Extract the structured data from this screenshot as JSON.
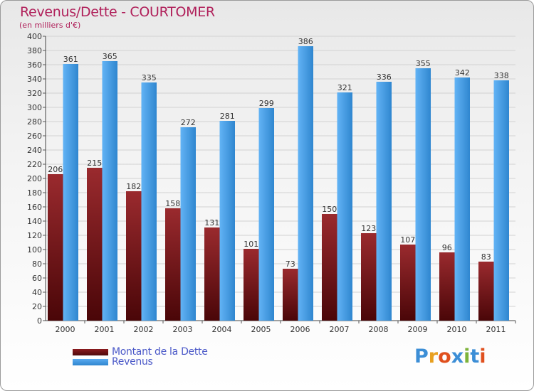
{
  "chart_data": {
    "type": "bar",
    "title": "Revenus/Dette - COURTOMER",
    "subtitle": "(en milliers d'€)",
    "categories": [
      "2000",
      "2001",
      "2002",
      "2003",
      "2004",
      "2005",
      "2006",
      "2007",
      "2008",
      "2009",
      "2010",
      "2011"
    ],
    "series": [
      {
        "name": "Montant de la Dette",
        "values": [
          206,
          215,
          182,
          158,
          131,
          101,
          73,
          150,
          123,
          107,
          96,
          83
        ],
        "color": "#6b0f12"
      },
      {
        "name": "Revenus",
        "values": [
          361,
          365,
          335,
          272,
          281,
          299,
          386,
          321,
          336,
          355,
          342,
          338
        ],
        "color": "#3f97de"
      }
    ],
    "ylim": [
      0,
      400
    ],
    "ytick_step": 20,
    "grid": true,
    "xlabel": "",
    "ylabel": "",
    "legend": "bottom-left"
  },
  "logo": {
    "letters": [
      "P",
      "r",
      "o",
      "x",
      "i",
      "t",
      "i"
    ],
    "colors": [
      "#3c8ed6",
      "#e8a020",
      "#e0501e",
      "#3c8ed6",
      "#7db33a",
      "#3c8ed6",
      "#e0501e"
    ]
  }
}
